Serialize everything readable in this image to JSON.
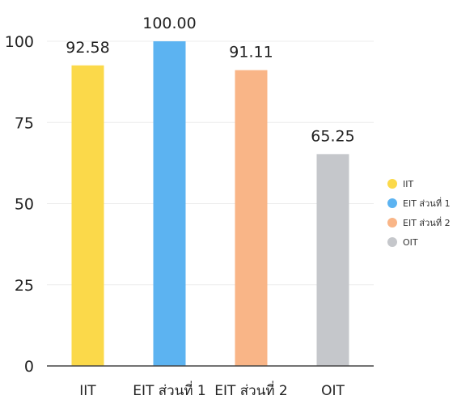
{
  "chart_data": {
    "type": "bar",
    "title": "",
    "xlabel": "",
    "ylabel": "",
    "ylim": [
      0,
      100
    ],
    "yticks": [
      0,
      25,
      50,
      75,
      100
    ],
    "grid": true,
    "legend_position": "right",
    "categories": [
      "IIT",
      "EIT ส่วนที่ 1",
      "EIT ส่วนที่ 2",
      "OIT"
    ],
    "values": [
      92.58,
      100.0,
      91.11,
      65.25
    ],
    "value_labels": [
      "92.58",
      "100.00",
      "91.11",
      "65.25"
    ],
    "colors": [
      "#fbd94a",
      "#5cb3f1",
      "#f9b587",
      "#c5c7cb"
    ],
    "legend": [
      "IIT",
      "EIT ส่วนที่ 1",
      "EIT ส่วนที่ 2",
      "OIT"
    ]
  }
}
